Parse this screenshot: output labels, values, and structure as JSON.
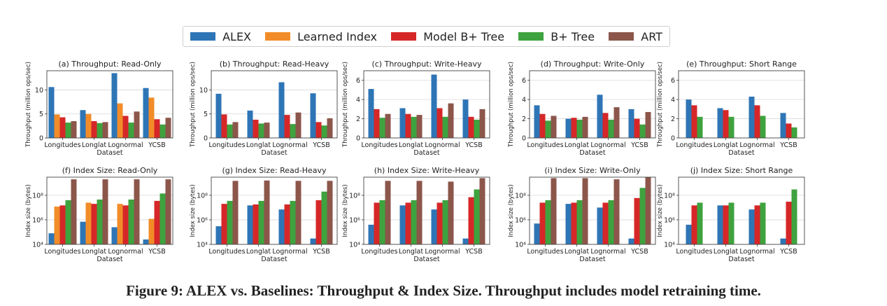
{
  "legend": {
    "items": [
      {
        "label": "ALEX",
        "color": "#2e75b6"
      },
      {
        "label": "Learned Index",
        "color": "#f28c28"
      },
      {
        "label": "Model B+ Tree",
        "color": "#d62728"
      },
      {
        "label": "B+ Tree",
        "color": "#3ea33e"
      },
      {
        "label": "ART",
        "color": "#8c564b"
      }
    ]
  },
  "caption": "Figure 9: ALEX vs. Baselines: Throughput & Index Size. Throughput includes model retraining time.",
  "chart_data": [
    {
      "type": "bar",
      "title": "(a) Throughput: Read-Only",
      "xlabel": "Dataset",
      "ylabel": "Throughput (million ops/sec)",
      "categories": [
        "Longitudes",
        "Longlat",
        "Lognormal",
        "YCSB"
      ],
      "ylim": [
        0,
        14
      ],
      "yticks": [
        0,
        5,
        10
      ],
      "scale": "linear",
      "series": [
        {
          "name": "ALEX",
          "values": [
            10.6,
            5.8,
            13.5,
            10.4
          ]
        },
        {
          "name": "Learned Index",
          "values": [
            4.9,
            5.0,
            7.2,
            8.4
          ]
        },
        {
          "name": "Model B+ Tree",
          "values": [
            4.3,
            3.5,
            4.6,
            3.9
          ]
        },
        {
          "name": "B+ Tree",
          "values": [
            3.2,
            3.1,
            3.2,
            2.8
          ]
        },
        {
          "name": "ART",
          "values": [
            3.5,
            3.3,
            5.5,
            4.2
          ]
        }
      ]
    },
    {
      "type": "bar",
      "title": "(b) Throughput: Read-Heavy",
      "xlabel": "Dataset",
      "ylabel": "Throughput (million ops/sec)",
      "categories": [
        "Longitudes",
        "Longlat",
        "Lognormal",
        "YCSB"
      ],
      "ylim": [
        0,
        14
      ],
      "yticks": [
        0,
        5,
        10
      ],
      "scale": "linear",
      "series": [
        {
          "name": "ALEX",
          "values": [
            9.2,
            5.7,
            11.6,
            9.3
          ]
        },
        {
          "name": "Model B+ Tree",
          "values": [
            4.9,
            3.8,
            4.8,
            3.3
          ]
        },
        {
          "name": "B+ Tree",
          "values": [
            2.8,
            3.0,
            2.9,
            2.6
          ]
        },
        {
          "name": "ART",
          "values": [
            3.3,
            3.2,
            5.3,
            4.1
          ]
        }
      ]
    },
    {
      "type": "bar",
      "title": "(c) Throughput: Write-Heavy",
      "xlabel": "Dataset",
      "ylabel": "Throughput (million ops/sec)",
      "categories": [
        "Longitudes",
        "Longlat",
        "Lognormal",
        "YCSB"
      ],
      "ylim": [
        0,
        7
      ],
      "yticks": [
        0,
        2,
        4,
        6
      ],
      "scale": "linear",
      "series": [
        {
          "name": "ALEX",
          "values": [
            5.1,
            3.1,
            6.6,
            4.0
          ]
        },
        {
          "name": "Model B+ Tree",
          "values": [
            3.0,
            2.5,
            3.1,
            2.2
          ]
        },
        {
          "name": "B+ Tree",
          "values": [
            2.1,
            2.2,
            2.2,
            1.9
          ]
        },
        {
          "name": "ART",
          "values": [
            2.5,
            2.4,
            3.6,
            3.0
          ]
        }
      ]
    },
    {
      "type": "bar",
      "title": "(d) Throughput: Write-Only",
      "xlabel": "Dataset",
      "ylabel": "Throughput (million ops/sec)",
      "categories": [
        "Longitudes",
        "Longlat",
        "Lognormal",
        "YCSB"
      ],
      "ylim": [
        0,
        7
      ],
      "yticks": [
        0,
        2,
        4,
        6
      ],
      "scale": "linear",
      "series": [
        {
          "name": "ALEX",
          "values": [
            3.4,
            2.0,
            4.5,
            3.0
          ]
        },
        {
          "name": "Model B+ Tree",
          "values": [
            2.5,
            2.1,
            2.6,
            2.0
          ]
        },
        {
          "name": "B+ Tree",
          "values": [
            1.8,
            1.9,
            1.9,
            1.4
          ]
        },
        {
          "name": "ART",
          "values": [
            2.3,
            2.2,
            3.2,
            2.7
          ]
        }
      ]
    },
    {
      "type": "bar",
      "title": "(e) Throughput: Short Range",
      "xlabel": "Dataset",
      "ylabel": "Throughput (million ops/sec)",
      "categories": [
        "Longitudes",
        "Longlat",
        "Lognormal",
        "YCSB"
      ],
      "ylim": [
        0,
        7
      ],
      "yticks": [
        0,
        2,
        4,
        6
      ],
      "scale": "linear",
      "series": [
        {
          "name": "ALEX",
          "values": [
            4.0,
            3.1,
            4.3,
            2.6
          ]
        },
        {
          "name": "Model B+ Tree",
          "values": [
            3.4,
            2.9,
            3.4,
            1.5
          ]
        },
        {
          "name": "B+ Tree",
          "values": [
            2.2,
            2.2,
            2.3,
            1.1
          ]
        }
      ]
    },
    {
      "type": "bar",
      "title": "(f) Index Size: Read-Only",
      "xlabel": "Dataset",
      "ylabel": "Index size (bytes)",
      "categories": [
        "Longitudes",
        "Longlat",
        "Lognormal",
        "YCSB"
      ],
      "ylim": [
        10000,
        3000000000
      ],
      "yticks": [
        10000,
        1000000,
        100000000
      ],
      "yticklabels": [
        "10⁴",
        "10⁶",
        "10⁸"
      ],
      "scale": "log",
      "series": [
        {
          "name": "ALEX",
          "values": [
            80000,
            700000,
            250000,
            25000
          ]
        },
        {
          "name": "Learned Index",
          "values": [
            12000000,
            25000000,
            20000000,
            1200000
          ]
        },
        {
          "name": "Model B+ Tree",
          "values": [
            15000000,
            20000000,
            15000000,
            35000000
          ]
        },
        {
          "name": "B+ Tree",
          "values": [
            40000000,
            45000000,
            45000000,
            140000000
          ]
        },
        {
          "name": "ART",
          "values": [
            2000000000,
            2000000000,
            2000000000,
            2000000000
          ]
        }
      ]
    },
    {
      "type": "bar",
      "title": "(g) Index Size: Read-Heavy",
      "xlabel": "Dataset",
      "ylabel": "Index size (bytes)",
      "categories": [
        "Longitudes",
        "Longlat",
        "Lognormal",
        "YCSB"
      ],
      "ylim": [
        10000,
        3000000000
      ],
      "yticks": [
        10000,
        1000000,
        100000000
      ],
      "yticklabels": [
        "10⁴",
        "10⁶",
        "10⁸"
      ],
      "scale": "log",
      "series": [
        {
          "name": "ALEX",
          "values": [
            300000,
            15000000,
            7000000,
            30000
          ]
        },
        {
          "name": "Model B+ Tree",
          "values": [
            20000000,
            18000000,
            18000000,
            40000000
          ]
        },
        {
          "name": "B+ Tree",
          "values": [
            35000000,
            35000000,
            35000000,
            200000000
          ]
        },
        {
          "name": "ART",
          "values": [
            1500000000,
            1600000000,
            1500000000,
            1500000000
          ]
        }
      ]
    },
    {
      "type": "bar",
      "title": "(h) Index Size: Write-Heavy",
      "xlabel": "Dataset",
      "ylabel": "Index size (bytes)",
      "categories": [
        "Longitudes",
        "Longlat",
        "Lognormal",
        "YCSB"
      ],
      "ylim": [
        10000,
        3000000000
      ],
      "yticks": [
        10000,
        1000000,
        100000000
      ],
      "yticklabels": [
        "10⁴",
        "10⁶",
        "10⁸"
      ],
      "scale": "log",
      "series": [
        {
          "name": "ALEX",
          "values": [
            400000,
            15000000,
            7000000,
            30000
          ]
        },
        {
          "name": "Model B+ Tree",
          "values": [
            25000000,
            25000000,
            25000000,
            70000000
          ]
        },
        {
          "name": "B+ Tree",
          "values": [
            40000000,
            40000000,
            40000000,
            300000000
          ]
        },
        {
          "name": "ART",
          "values": [
            1500000000,
            1500000000,
            1300000000,
            2500000000
          ]
        }
      ]
    },
    {
      "type": "bar",
      "title": "(i) Index Size: Write-Only",
      "xlabel": "Dataset",
      "ylabel": "Index size (bytes)",
      "categories": [
        "Longitudes",
        "Longlat",
        "Lognormal",
        "YCSB"
      ],
      "ylim": [
        10000,
        3000000000
      ],
      "yticks": [
        10000,
        1000000,
        100000000
      ],
      "yticklabels": [
        "10⁴",
        "10⁶",
        "10⁸"
      ],
      "scale": "log",
      "series": [
        {
          "name": "ALEX",
          "values": [
            500000,
            20000000,
            10000000,
            30000
          ]
        },
        {
          "name": "Model B+ Tree",
          "values": [
            25000000,
            25000000,
            25000000,
            60000000
          ]
        },
        {
          "name": "B+ Tree",
          "values": [
            40000000,
            40000000,
            40000000,
            400000000
          ]
        },
        {
          "name": "ART",
          "values": [
            2500000000,
            2500000000,
            2000000000,
            3000000000
          ]
        }
      ]
    },
    {
      "type": "bar",
      "title": "(j) Index Size: Short Range",
      "xlabel": "Dataset",
      "ylabel": "Index size (bytes)",
      "categories": [
        "Longitudes",
        "Longlat",
        "Lognormal",
        "YCSB"
      ],
      "ylim": [
        10000,
        3000000000
      ],
      "yticks": [
        10000,
        1000000,
        100000000
      ],
      "yticklabels": [
        "10⁴",
        "10⁶",
        "10⁸"
      ],
      "scale": "log",
      "series": [
        {
          "name": "ALEX",
          "values": [
            400000,
            15000000,
            7000000,
            30000
          ]
        },
        {
          "name": "Model B+ Tree",
          "values": [
            15000000,
            15000000,
            15000000,
            30000000
          ]
        },
        {
          "name": "B+ Tree",
          "values": [
            25000000,
            25000000,
            25000000,
            300000000
          ]
        }
      ]
    }
  ]
}
